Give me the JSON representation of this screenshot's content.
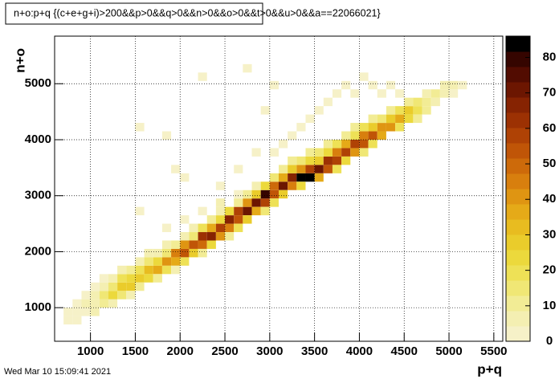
{
  "chart_data": {
    "type": "heatmap",
    "title": "n+o:p+q {(c+e+g+i)>200&&p>0&&q>0&&n>0&&o>0&&t>0&&u>0&&a==22066021}",
    "x_label": "p+q",
    "y_label": "n+o",
    "timestamp": "Wed Mar 10 15:09:41 2021",
    "xlim": [
      600,
      5600
    ],
    "ylim": [
      400,
      5850
    ],
    "x_bin_width": 100,
    "y_bin_width": 150,
    "xticks": [
      1000,
      1500,
      2000,
      2500,
      3000,
      3500,
      4000,
      4500,
      5000,
      5500
    ],
    "yticks": [
      1000,
      2000,
      3000,
      4000,
      5000
    ],
    "zlim": [
      0,
      86
    ],
    "zticks": [
      0,
      10,
      20,
      30,
      40,
      50,
      60,
      70,
      80
    ],
    "grid": true,
    "palette": [
      "#f6f1c8",
      "#f4efb2",
      "#f2ec95",
      "#f0e775",
      "#eee156",
      "#ecd93c",
      "#eacc2b",
      "#e8bc20",
      "#e5aa18",
      "#df9512",
      "#d87f0e",
      "#cd6a0a",
      "#c05507",
      "#af4205",
      "#9c3103",
      "#862302",
      "#6c1601",
      "#520c01",
      "#350500",
      "#000000"
    ],
    "cells": {
      "x": [
        700,
        700,
        800,
        800,
        800,
        900,
        900,
        900,
        1000,
        1000,
        1000,
        1000,
        1100,
        1100,
        1100,
        1100,
        1200,
        1200,
        1200,
        1200,
        1300,
        1300,
        1300,
        1300,
        1400,
        1400,
        1400,
        1400,
        1500,
        1500,
        1500,
        1500,
        1600,
        1600,
        1600,
        1600,
        1700,
        1700,
        1700,
        1700,
        1800,
        1800,
        1800,
        1800,
        1900,
        1900,
        1900,
        1900,
        2000,
        2000,
        2000,
        2000,
        2100,
        2100,
        2100,
        2100,
        2200,
        2200,
        2200,
        2200,
        2300,
        2300,
        2300,
        2300,
        2400,
        2400,
        2400,
        2400,
        2500,
        2500,
        2500,
        2500,
        2600,
        2600,
        2600,
        2600,
        2700,
        2700,
        2700,
        2700,
        2800,
        2800,
        2800,
        2800,
        2900,
        2900,
        2900,
        2900,
        3000,
        3000,
        3000,
        3000,
        3100,
        3100,
        3100,
        3100,
        3200,
        3200,
        3200,
        3200,
        3300,
        3300,
        3300,
        3300,
        3400,
        3400,
        3400,
        3400,
        3500,
        3500,
        3500,
        3500,
        3600,
        3600,
        3600,
        3600,
        3700,
        3700,
        3700,
        3700,
        3800,
        3800,
        3800,
        3800,
        3900,
        3900,
        3900,
        3900,
        4000,
        4000,
        4000,
        4000,
        4100,
        4100,
        4100,
        4100,
        4200,
        4200,
        4200,
        4300,
        4300,
        4300,
        4400,
        4400,
        4400,
        4500,
        4500,
        4500,
        4600,
        4600,
        4600,
        4700,
        4700,
        4700,
        4800,
        4800,
        4900,
        4900,
        5000,
        5000,
        5100,
        2400,
        2600,
        2800,
        3000,
        3100,
        3200,
        3300,
        3400,
        3500,
        3600,
        3700,
        3800,
        3900,
        4000,
        4100,
        4200,
        4300,
        4400,
        2900,
        3000,
        2200,
        1800,
        1500,
        2700,
        2600,
        2400,
        2200,
        2000,
        1800,
        2000,
        1900,
        1500
      ],
      "y": [
        700,
        850,
        850,
        1000,
        700,
        850,
        1000,
        1150,
        850,
        1000,
        1150,
        1300,
        1000,
        1150,
        1300,
        1450,
        1000,
        1150,
        1300,
        1450,
        1150,
        1300,
        1450,
        1600,
        1300,
        1450,
        1600,
        1150,
        1450,
        1600,
        1300,
        1750,
        1450,
        1600,
        1750,
        1900,
        1600,
        1750,
        1450,
        1900,
        1750,
        1600,
        1900,
        2050,
        1750,
        1900,
        2050,
        1600,
        1900,
        2050,
        1750,
        2200,
        2050,
        1900,
        2200,
        2350,
        2050,
        2200,
        2350,
        1900,
        2200,
        2350,
        2050,
        2500,
        2350,
        2200,
        2500,
        2650,
        2350,
        2500,
        2650,
        2200,
        2500,
        2650,
        2350,
        2800,
        2650,
        2800,
        2500,
        2950,
        2800,
        2650,
        2950,
        3100,
        2800,
        2950,
        3100,
        2650,
        2950,
        3100,
        2800,
        3250,
        3100,
        2950,
        3250,
        3400,
        3100,
        3250,
        3400,
        3550,
        3250,
        3400,
        3100,
        3550,
        3250,
        3400,
        3550,
        3700,
        3400,
        3250,
        3550,
        3700,
        3400,
        3550,
        3700,
        3850,
        3550,
        3700,
        3400,
        3850,
        3700,
        3850,
        3550,
        4000,
        3700,
        3850,
        4000,
        4150,
        3850,
        4000,
        4150,
        3700,
        4000,
        4150,
        3850,
        4300,
        4000,
        4150,
        4300,
        4150,
        4300,
        4450,
        4300,
        4150,
        4450,
        4450,
        4300,
        4600,
        4450,
        4600,
        4300,
        4600,
        4450,
        4750,
        4600,
        4750,
        4750,
        4900,
        4750,
        4900,
        4900,
        3100,
        3400,
        3700,
        3700,
        3850,
        4000,
        4150,
        4300,
        4450,
        4600,
        4750,
        4900,
        4750,
        5050,
        4900,
        4750,
        4900,
        4750,
        4450,
        4900,
        5050,
        4000,
        4150,
        5200,
        2950,
        2800,
        2650,
        2500,
        2350,
        3250,
        3400,
        2650
      ],
      "z": [
        3,
        2,
        3,
        2,
        2,
        4,
        6,
        3,
        5,
        8,
        5,
        3,
        10,
        14,
        6,
        3,
        8,
        22,
        15,
        6,
        15,
        28,
        20,
        8,
        26,
        24,
        10,
        6,
        30,
        18,
        12,
        6,
        22,
        32,
        14,
        5,
        38,
        25,
        10,
        8,
        42,
        20,
        15,
        5,
        35,
        45,
        12,
        8,
        52,
        40,
        18,
        8,
        55,
        30,
        15,
        6,
        50,
        62,
        20,
        12,
        68,
        35,
        25,
        10,
        60,
        40,
        22,
        8,
        45,
        65,
        25,
        12,
        55,
        60,
        20,
        12,
        70,
        40,
        30,
        10,
        72,
        35,
        28,
        8,
        60,
        78,
        25,
        15,
        55,
        50,
        20,
        15,
        70,
        30,
        35,
        12,
        45,
        68,
        28,
        10,
        86,
        40,
        22,
        15,
        82,
        60,
        25,
        12,
        70,
        35,
        30,
        15,
        55,
        62,
        25,
        10,
        58,
        45,
        20,
        18,
        60,
        35,
        25,
        12,
        40,
        58,
        20,
        10,
        55,
        45,
        18,
        15,
        52,
        30,
        20,
        10,
        35,
        40,
        15,
        42,
        28,
        10,
        38,
        18,
        20,
        30,
        22,
        12,
        20,
        15,
        10,
        12,
        10,
        8,
        8,
        10,
        6,
        5,
        4,
        5,
        3,
        2,
        2,
        2,
        3,
        3,
        2,
        3,
        2,
        3,
        2,
        2,
        3,
        2,
        2,
        2,
        3,
        2,
        3,
        2,
        1,
        1,
        1,
        1,
        1,
        4,
        5,
        4,
        3,
        3,
        2,
        1,
        2
      ]
    }
  }
}
